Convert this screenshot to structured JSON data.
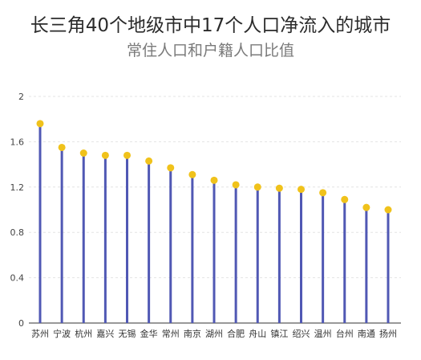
{
  "chart_data": {
    "type": "lollipop",
    "title": "长三角40个地级市中17个人口净流入的城市",
    "subtitle": "常住人口和户籍人口比值",
    "categories": [
      "苏州",
      "宁波",
      "杭州",
      "嘉兴",
      "无锡",
      "金华",
      "常州",
      "南京",
      "湖州",
      "合肥",
      "舟山",
      "镇江",
      "绍兴",
      "温州",
      "台州",
      "南通",
      "扬州"
    ],
    "values": [
      1.76,
      1.55,
      1.5,
      1.48,
      1.48,
      1.43,
      1.37,
      1.31,
      1.26,
      1.22,
      1.2,
      1.19,
      1.18,
      1.15,
      1.09,
      1.02,
      1.0
    ],
    "ylim": [
      0,
      2
    ],
    "yticks": [
      "0",
      "0.4",
      "0.8",
      "1.2",
      "1.6",
      "2"
    ],
    "grid": true,
    "colors": {
      "stem": "#5058b4",
      "dot": "#f0c21b",
      "grid": "#e3e3e3",
      "axis": "#333333"
    }
  }
}
